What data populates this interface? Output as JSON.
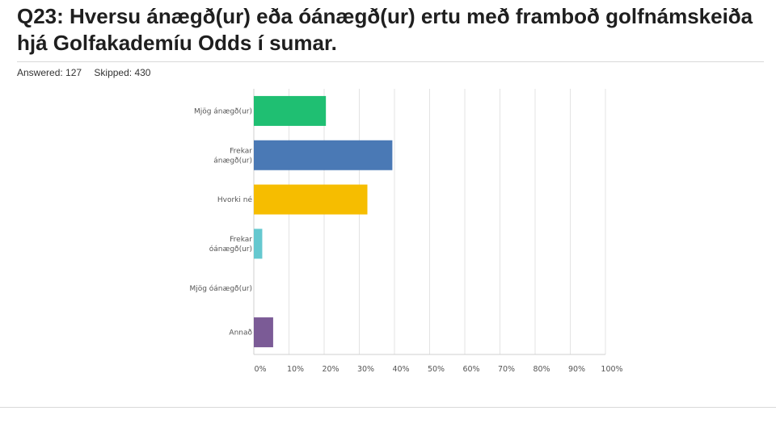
{
  "question": {
    "title": "Q23: Hversu ánægð(ur) eða óánægð(ur) ertu með framboð golfnámskeiða hjá Golfakademíu Odds í sumar.",
    "answered": "Answered: 127",
    "skipped": "Skipped: 430"
  },
  "chart_data": {
    "type": "bar",
    "orientation": "horizontal",
    "categories": [
      [
        "Mjög ánægð(ur)"
      ],
      [
        "Frekar",
        "ánægð(ur)"
      ],
      [
        "Hvorki né"
      ],
      [
        "Frekar",
        "óánægð(ur)"
      ],
      [
        "Mjög óánægð(ur)"
      ],
      [
        "Annað"
      ]
    ],
    "values": [
      20.5,
      39.4,
      32.3,
      2.4,
      0,
      5.5
    ],
    "colors": [
      "#1fbf72",
      "#4a79b5",
      "#f6bd00",
      "#65c8cf",
      "#a0a0a0",
      "#7b5b96"
    ],
    "xlim": [
      0,
      100
    ],
    "xticks": [
      "0%",
      "10%",
      "20%",
      "30%",
      "40%",
      "50%",
      "60%",
      "70%",
      "80%",
      "90%",
      "100%"
    ],
    "grid": true,
    "legend": "none"
  }
}
